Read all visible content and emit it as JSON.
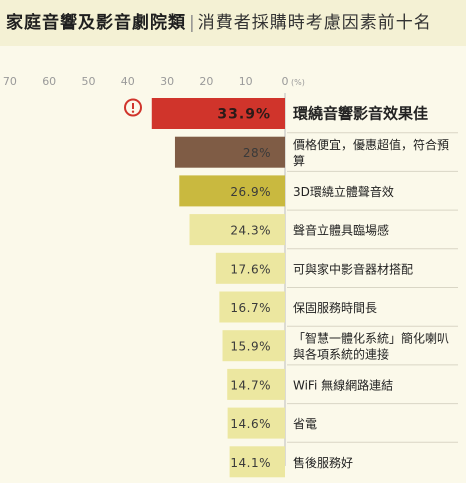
{
  "header": {
    "title": "家庭音響及影音劇院類",
    "separator": "|",
    "subtitle": "消費者採購時考慮因素前十名"
  },
  "colors": {
    "top": "#d0342b",
    "second": "#7f5c45",
    "third": "#c9b93f",
    "rest": "#ece7a0",
    "alert": "#d0342b"
  },
  "chart_data": {
    "type": "bar",
    "orientation": "horizontal",
    "direction": "right-to-left",
    "axis": {
      "ticks": [
        70,
        60,
        50,
        40,
        30,
        20,
        10,
        0
      ],
      "unit": "(%)",
      "xlim": [
        0,
        70
      ]
    },
    "categories": [
      "環繞音響影音效果佳",
      "價格便宜，優惠超值，符合預算",
      "3D環繞立體聲音效",
      "聲音立體具臨場感",
      "可與家中影音器材搭配",
      "保固服務時間長",
      "「智慧一體化系統」簡化喇叭與各項系統的連接",
      "WiFi 無線網路連結",
      "省電",
      "售後服務好"
    ],
    "values": [
      33.9,
      28,
      26.9,
      24.3,
      17.6,
      16.7,
      15.9,
      14.7,
      14.6,
      14.1
    ],
    "value_labels": [
      "33.9%",
      "28%",
      "26.9%",
      "24.3%",
      "17.6%",
      "16.7%",
      "15.9%",
      "14.7%",
      "14.6%",
      "14.1%"
    ],
    "highlight_icon": "exclamation-circle-icon",
    "grid": false
  }
}
